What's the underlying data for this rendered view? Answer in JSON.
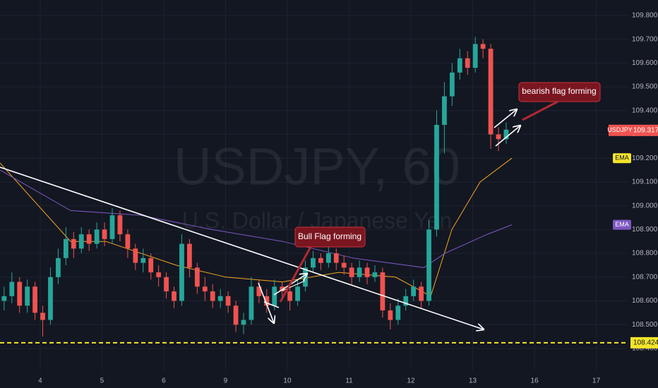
{
  "chart_data": {
    "type": "candlestick",
    "title": "USDJPY, 60",
    "subtitle": "U.S. Dollar / Japanese Yen",
    "up_color": "#26a69a",
    "down_color": "#ef5350",
    "xlim": [
      -15.6,
      227.9
    ],
    "xticks": [
      {
        "value": 0,
        "label": "4"
      },
      {
        "value": 24,
        "label": "5"
      },
      {
        "value": 48,
        "label": "6"
      },
      {
        "value": 72,
        "label": "9"
      },
      {
        "value": 96,
        "label": "10"
      },
      {
        "value": 120,
        "label": "11"
      },
      {
        "value": 144,
        "label": "12"
      },
      {
        "value": 168,
        "label": "13"
      },
      {
        "value": 192,
        "label": "16"
      },
      {
        "value": 216,
        "label": "17"
      }
    ],
    "ylim": [
      108.308,
      109.865
    ],
    "yticks": [
      {
        "value": 108.4,
        "label": "108.400"
      },
      {
        "value": 108.5,
        "label": "108.500"
      },
      {
        "value": 108.6,
        "label": "108.600"
      },
      {
        "value": 108.7,
        "label": "108.700"
      },
      {
        "value": 108.8,
        "label": "108.800"
      },
      {
        "value": 108.9,
        "label": "108.900"
      },
      {
        "value": 109.0,
        "label": "109.000"
      },
      {
        "value": 109.1,
        "label": "109.100"
      },
      {
        "value": 109.2,
        "label": "109.200"
      },
      {
        "value": 109.3,
        "label": "109.300"
      },
      {
        "value": 109.4,
        "label": "109.400"
      },
      {
        "value": 109.5,
        "label": "109.500"
      },
      {
        "value": 109.6,
        "label": "109.600"
      },
      {
        "value": 109.7,
        "label": "109.700"
      },
      {
        "value": 109.8,
        "label": "109.800"
      }
    ],
    "grid": true,
    "candles": {
      "x": [
        -14,
        -11,
        -8,
        -5,
        -2,
        1,
        4,
        7,
        10,
        13,
        16,
        19,
        22,
        25,
        28,
        31,
        34,
        37,
        40,
        43,
        46,
        49,
        52,
        55,
        58,
        61,
        64,
        67,
        70,
        73,
        76,
        79,
        82,
        85,
        88,
        91,
        94,
        97,
        100,
        103,
        106,
        109,
        112,
        115,
        118,
        121,
        124,
        127,
        130,
        133,
        136,
        139,
        142,
        145,
        148,
        151,
        154,
        157,
        160,
        163,
        166,
        169,
        172,
        175,
        178,
        181
      ],
      "open": [
        108.6,
        108.62,
        108.68,
        108.58,
        108.66,
        108.55,
        108.52,
        108.7,
        108.78,
        108.86,
        108.82,
        108.88,
        108.84,
        108.9,
        108.86,
        108.96,
        108.88,
        108.82,
        108.76,
        108.78,
        108.72,
        108.7,
        108.64,
        108.6,
        108.84,
        108.74,
        108.66,
        108.64,
        108.6,
        108.62,
        108.58,
        108.5,
        108.52,
        108.66,
        108.62,
        108.58,
        108.66,
        108.64,
        108.6,
        108.66,
        108.74,
        108.78,
        108.76,
        108.8,
        108.76,
        108.74,
        108.7,
        108.74,
        108.7,
        108.72,
        108.56,
        108.52,
        108.58,
        108.62,
        108.66,
        108.6,
        108.9,
        109.34,
        109.46,
        109.56,
        109.62,
        109.58,
        109.68,
        109.66,
        109.3,
        109.28
      ],
      "high": [
        108.66,
        108.72,
        108.7,
        108.69,
        108.68,
        108.58,
        108.74,
        108.82,
        108.91,
        108.89,
        108.91,
        108.9,
        108.93,
        108.93,
        108.99,
        108.98,
        108.9,
        108.84,
        108.82,
        108.8,
        108.75,
        108.72,
        108.66,
        108.88,
        108.86,
        108.76,
        108.7,
        108.67,
        108.65,
        108.64,
        108.6,
        108.55,
        108.7,
        108.69,
        108.65,
        108.69,
        108.68,
        108.66,
        108.69,
        108.77,
        108.81,
        108.8,
        108.83,
        108.82,
        108.79,
        108.76,
        108.77,
        108.76,
        108.75,
        108.74,
        108.59,
        108.61,
        108.65,
        108.69,
        108.68,
        108.94,
        109.4,
        109.52,
        109.6,
        109.66,
        109.65,
        109.71,
        109.7,
        109.68,
        109.33,
        109.35
      ],
      "low": [
        108.56,
        108.59,
        108.55,
        108.55,
        108.52,
        108.45,
        108.5,
        108.67,
        108.75,
        108.78,
        108.8,
        108.81,
        108.82,
        108.83,
        108.84,
        108.85,
        108.78,
        108.73,
        108.72,
        108.69,
        108.66,
        108.61,
        108.57,
        108.58,
        108.7,
        108.63,
        108.6,
        108.57,
        108.57,
        108.55,
        108.47,
        108.46,
        108.5,
        108.59,
        108.55,
        108.56,
        108.61,
        108.56,
        108.58,
        108.64,
        108.72,
        108.73,
        108.74,
        108.73,
        108.71,
        108.67,
        108.68,
        108.67,
        108.68,
        108.53,
        108.48,
        108.5,
        108.56,
        108.6,
        108.57,
        108.58,
        108.87,
        109.22,
        109.42,
        109.53,
        109.55,
        109.56,
        109.62,
        109.24,
        109.23,
        109.26
      ],
      "close": [
        108.62,
        108.68,
        108.58,
        108.66,
        108.55,
        108.52,
        108.7,
        108.78,
        108.86,
        108.82,
        108.88,
        108.84,
        108.9,
        108.86,
        108.96,
        108.88,
        108.82,
        108.76,
        108.78,
        108.72,
        108.7,
        108.64,
        108.6,
        108.84,
        108.74,
        108.66,
        108.64,
        108.6,
        108.62,
        108.58,
        108.5,
        108.52,
        108.66,
        108.62,
        108.58,
        108.66,
        108.64,
        108.6,
        108.66,
        108.74,
        108.78,
        108.76,
        108.8,
        108.76,
        108.74,
        108.7,
        108.74,
        108.7,
        108.72,
        108.56,
        108.52,
        108.58,
        108.62,
        108.66,
        108.6,
        108.9,
        109.34,
        109.46,
        109.56,
        109.62,
        109.58,
        109.68,
        109.66,
        109.3,
        109.28,
        109.32
      ]
    },
    "series": [
      {
        "name": "EMA",
        "color": "#f5a623",
        "tag_color": "#f5e52a",
        "x": [
          -15.6,
          11.8,
          25.5,
          52.9,
          72.1,
          94.1,
          116,
          138,
          151.7,
          159.9,
          170.9,
          183.2
        ],
        "values": [
          109.18,
          108.85,
          108.85,
          108.75,
          108.7,
          108.68,
          108.72,
          108.7,
          108.62,
          108.9,
          109.1,
          109.2
        ]
      },
      {
        "name": "EMA",
        "color": "#7e57c2",
        "tag_color": "#7e57c2",
        "x": [
          -15.6,
          11.8,
          39.2,
          66.7,
          94.1,
          121.6,
          149,
          157.2,
          173.7,
          183.2
        ],
        "values": [
          109.15,
          108.98,
          108.96,
          108.9,
          108.85,
          108.78,
          108.74,
          108.8,
          108.88,
          108.92
        ]
      }
    ],
    "price_tag": {
      "symbol": "USDJPY",
      "value": 109.317
    },
    "level_line": {
      "value": 108.424,
      "label": "108.424"
    },
    "annotations": [
      "Bull Flag forming",
      "bearish flag forming"
    ]
  }
}
